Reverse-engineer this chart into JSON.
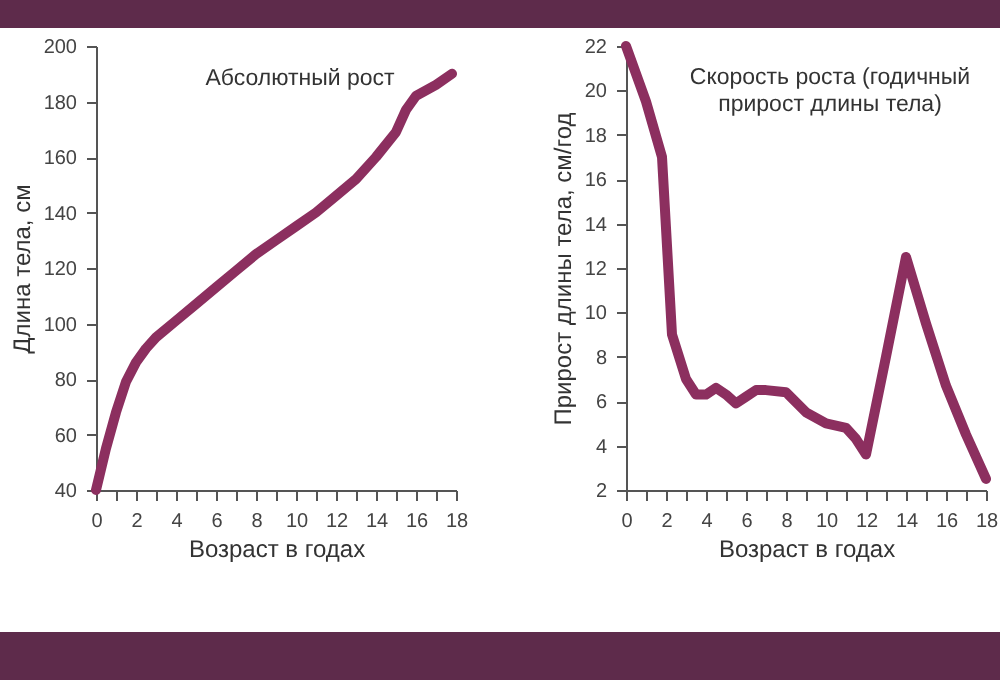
{
  "chart_data": [
    {
      "type": "line",
      "title": "Абсолютный рост",
      "xlabel": "Возраст в годах",
      "ylabel": "Длина тела, см",
      "x": [
        0,
        0.5,
        1,
        1.5,
        2,
        2.5,
        3,
        4,
        5,
        6,
        7,
        8,
        9,
        10,
        11,
        12,
        13,
        14,
        15,
        15.5,
        16,
        17,
        17.8
      ],
      "series": [
        {
          "color": "#8c2f5f",
          "values": [
            40,
            55,
            68,
            79,
            86,
            91,
            95,
            101,
            107,
            113,
            119,
            125,
            130,
            135,
            140,
            146,
            152,
            160,
            169,
            177,
            182,
            186,
            190
          ]
        }
      ],
      "xlim": [
        0,
        18
      ],
      "ylim": [
        40,
        200
      ],
      "xticks": [
        0,
        {
          "value": 1,
          "label": null
        },
        2,
        {
          "value": 3,
          "label": null
        },
        4,
        {
          "value": 5,
          "label": null
        },
        6,
        {
          "value": 7,
          "label": null
        },
        8,
        {
          "value": 9,
          "label": null
        },
        10,
        {
          "value": 11,
          "label": null
        },
        12,
        {
          "value": 13,
          "label": null
        },
        14,
        {
          "value": 15,
          "label": null
        },
        16,
        {
          "value": 17,
          "label": null
        },
        18
      ],
      "yticks": [
        40,
        60,
        80,
        100,
        120,
        140,
        160,
        180,
        200
      ],
      "grid": false,
      "marker": "none",
      "line_style": "solid"
    },
    {
      "type": "line",
      "title": "Скорость роста (годичный прирост длины тела)",
      "xlabel": "Возраст в годах",
      "ylabel": "Прирост длины тела, см/год",
      "x": [
        0,
        1,
        1.8,
        2.3,
        3,
        3.5,
        4,
        4.5,
        5,
        5.5,
        6,
        6.5,
        7,
        8,
        9,
        10,
        11,
        11.5,
        12,
        13,
        14,
        15,
        16,
        17,
        18
      ],
      "series": [
        {
          "color": "#8c2f5f",
          "values": [
            22,
            19.5,
            17,
            9,
            7,
            6.3,
            6.3,
            6.6,
            6.3,
            5.9,
            6.2,
            6.5,
            6.5,
            6.4,
            5.5,
            5,
            4.8,
            4.3,
            3.6,
            8,
            12.5,
            9.5,
            6.7,
            4.5,
            2.5
          ]
        }
      ],
      "xlim": [
        0,
        18
      ],
      "ylim": [
        2,
        22
      ],
      "xticks": [
        0,
        {
          "value": 1,
          "label": null
        },
        2,
        {
          "value": 3,
          "label": null
        },
        4,
        {
          "value": 5,
          "label": null
        },
        6,
        {
          "value": 7,
          "label": null
        },
        8,
        {
          "value": 9,
          "label": null
        },
        10,
        {
          "value": 11,
          "label": null
        },
        12,
        {
          "value": 13,
          "label": null
        },
        14,
        {
          "value": 15,
          "label": null
        },
        16,
        {
          "value": 17,
          "label": null
        },
        18
      ],
      "yticks": [
        2,
        4,
        6,
        8,
        10,
        12,
        14,
        16,
        18,
        20,
        22
      ],
      "grid": false,
      "marker": "none",
      "line_style": "solid"
    }
  ]
}
